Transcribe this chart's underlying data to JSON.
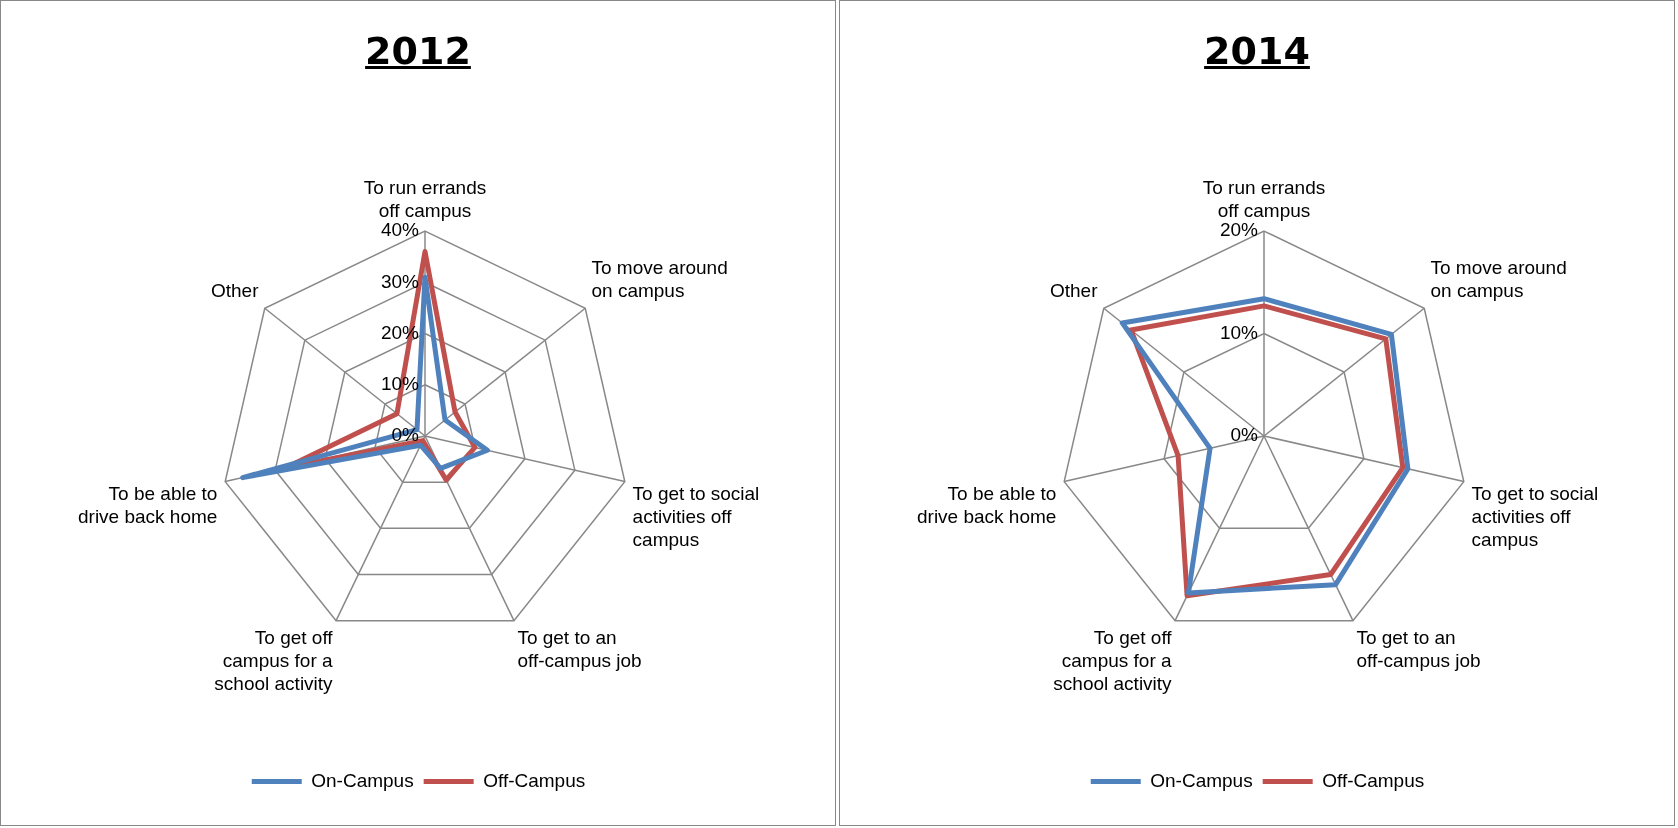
{
  "chart_data": [
    {
      "type": "radar",
      "title": "2012",
      "categories": [
        "To run errands off campus",
        "To move around on campus",
        "To get to social activities off campus",
        "To get to an off-campus job",
        "To get off campus for a school activity",
        "To be able to drive back home",
        "Other"
      ],
      "series": [
        {
          "name": "On-Campus",
          "color": "#4f81bd",
          "values": [
            31,
            5,
            12.5,
            7,
            2,
            36.5,
            2
          ]
        },
        {
          "name": "Off-Campus",
          "color": "#c0504d",
          "values": [
            36,
            7.5,
            10,
            9.5,
            1,
            28,
            7
          ]
        }
      ],
      "ylim": [
        0,
        40
      ],
      "yticks": [
        {
          "value": 0,
          "label": "0%"
        },
        {
          "value": 10,
          "label": "10%"
        },
        {
          "value": 20,
          "label": "20%"
        },
        {
          "value": 30,
          "label": "30%"
        },
        {
          "value": 40,
          "label": "40%"
        }
      ],
      "grid": true,
      "legend": "bottom",
      "marker": "none"
    },
    {
      "type": "radar",
      "title": "2014",
      "categories": [
        "To run errands off campus",
        "To move around on campus",
        "To get to social activities off campus",
        "To get to an off-campus job",
        "To get off campus for a school activity",
        "To be able to drive back home",
        "Other"
      ],
      "series": [
        {
          "name": "On-Campus",
          "color": "#4f81bd",
          "values": [
            13.4,
            15.9,
            14.4,
            16.1,
            17,
            5.4,
            17.7
          ]
        },
        {
          "name": "Off-Campus",
          "color": "#c0504d",
          "values": [
            12.7,
            15.2,
            13.9,
            15,
            17.3,
            8.6,
            16.6
          ]
        }
      ],
      "ylim": [
        0,
        20
      ],
      "yticks": [
        {
          "value": 0,
          "label": "0%"
        },
        {
          "value": 10,
          "label": "10%"
        },
        {
          "value": 20,
          "label": "20%"
        }
      ],
      "grid": true,
      "legend": "bottom",
      "marker": "none"
    }
  ]
}
